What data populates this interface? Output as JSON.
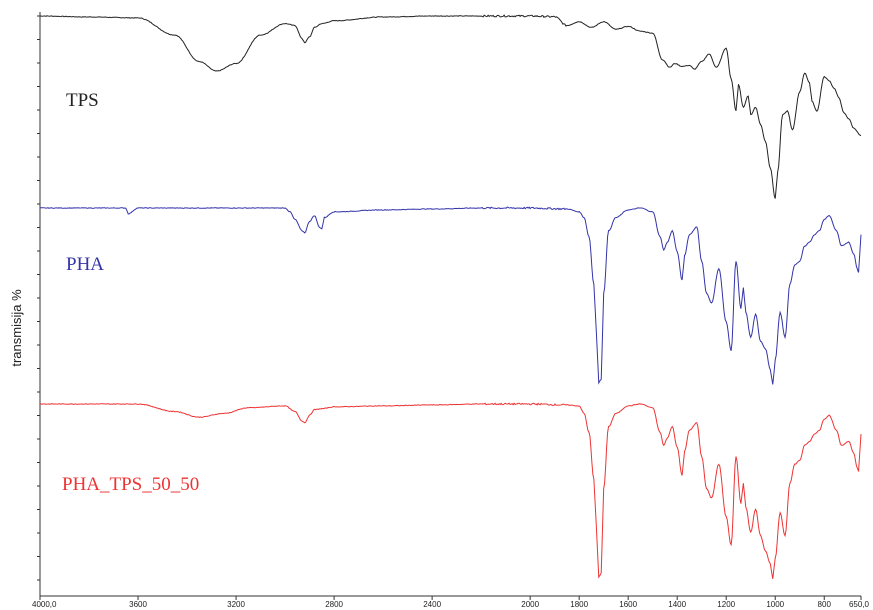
{
  "chart_data": {
    "type": "line",
    "ylabel": "transmisija %",
    "xlabel": "",
    "xlim": [
      4000,
      650
    ],
    "x_reversed": true,
    "x_ticks": [
      "4000,0",
      "3600",
      "3200",
      "2800",
      "2400",
      "2000",
      "1800",
      "1600",
      "1400",
      "1200",
      "1000",
      "800",
      "650,0"
    ],
    "x_tick_values": [
      4000,
      3600,
      3200,
      2800,
      2400,
      2000,
      1800,
      1600,
      1400,
      1200,
      1000,
      800,
      650
    ],
    "grid": false,
    "series": [
      {
        "name": "TPS",
        "color": "#222222",
        "x": [
          4000,
          3800,
          3600,
          3450,
          3350,
          3280,
          3200,
          3100,
          3000,
          2960,
          2930,
          2920,
          2900,
          2880,
          2850,
          2800,
          2600,
          2400,
          2200,
          2000,
          1900,
          1850,
          1800,
          1750,
          1700,
          1650,
          1600,
          1550,
          1500,
          1460,
          1430,
          1410,
          1380,
          1350,
          1330,
          1300,
          1270,
          1240,
          1200,
          1180,
          1160,
          1150,
          1130,
          1110,
          1100,
          1080,
          1060,
          1040,
          1020,
          1000,
          990,
          970,
          950,
          930,
          900,
          880,
          860,
          850,
          830,
          800,
          780,
          760,
          740,
          720,
          700,
          680,
          650
        ],
        "y": [
          100,
          99.5,
          99,
          90,
          76,
          71,
          75,
          90,
          96,
          95,
          88,
          86,
          89,
          94,
          96,
          97.5,
          99.5,
          100,
          100,
          100,
          99.6,
          95,
          97,
          94,
          97,
          93,
          94.5,
          92,
          91,
          77,
          73,
          75,
          73.5,
          74,
          72,
          76,
          80,
          73,
          83,
          67,
          50,
          64,
          52,
          58,
          48,
          52,
          43,
          34,
          20,
          4,
          18,
          48,
          50,
          40,
          60,
          70,
          65,
          55,
          50,
          68,
          66,
          62,
          57,
          49,
          46,
          41,
          37
        ]
      },
      {
        "name": "PHA",
        "color": "#3333aa",
        "x": [
          4000,
          3800,
          3650,
          3640,
          3600,
          3400,
          3000,
          2980,
          2960,
          2930,
          2920,
          2900,
          2880,
          2860,
          2850,
          2840,
          2800,
          2600,
          2400,
          2200,
          2000,
          1850,
          1800,
          1780,
          1760,
          1740,
          1730,
          1720,
          1710,
          1700,
          1680,
          1650,
          1600,
          1550,
          1500,
          1470,
          1455,
          1440,
          1420,
          1400,
          1380,
          1370,
          1350,
          1320,
          1300,
          1280,
          1260,
          1230,
          1200,
          1180,
          1160,
          1140,
          1130,
          1120,
          1100,
          1080,
          1060,
          1040,
          1020,
          1010,
          1000,
          980,
          960,
          940,
          920,
          900,
          880,
          860,
          840,
          820,
          800,
          780,
          750,
          730,
          700,
          680,
          665,
          660,
          650
        ],
        "y": [
          100,
          100,
          100,
          97,
          100,
          100,
          100,
          98,
          94,
          88,
          87,
          93,
          96,
          90,
          89,
          95,
          98,
          99,
          99.5,
          100,
          100,
          99.5,
          98,
          95,
          85,
          60,
          35,
          8,
          10,
          55,
          88,
          95,
          99,
          100,
          98,
          85,
          78,
          82,
          88,
          77,
          62,
          75,
          86,
          90,
          72,
          55,
          50,
          68,
          40,
          25,
          72,
          47,
          58,
          45,
          32,
          44,
          30,
          26,
          15,
          7,
          20,
          45,
          32,
          60,
          70,
          72,
          80,
          82,
          86,
          88,
          94,
          96,
          88,
          80,
          82,
          76,
          68,
          66,
          86
        ]
      },
      {
        "name": "PHA_TPS_50_50",
        "color": "#ee3333",
        "x": [
          4000,
          3800,
          3600,
          3450,
          3350,
          3250,
          3150,
          3000,
          2960,
          2930,
          2920,
          2900,
          2880,
          2850,
          2800,
          2600,
          2400,
          2200,
          2000,
          1850,
          1800,
          1780,
          1760,
          1740,
          1730,
          1720,
          1710,
          1700,
          1680,
          1650,
          1600,
          1550,
          1500,
          1470,
          1455,
          1440,
          1420,
          1400,
          1380,
          1370,
          1350,
          1320,
          1300,
          1280,
          1260,
          1230,
          1200,
          1180,
          1160,
          1140,
          1130,
          1120,
          1100,
          1080,
          1060,
          1040,
          1020,
          1010,
          1000,
          980,
          960,
          940,
          920,
          900,
          880,
          860,
          840,
          820,
          800,
          780,
          750,
          730,
          700,
          680,
          665,
          660,
          650
        ],
        "y": [
          100,
          100,
          100,
          96,
          93,
          95,
          98,
          99,
          96,
          91,
          90,
          94,
          97,
          97.5,
          98.5,
          99,
          99.5,
          100,
          100,
          99.5,
          99,
          95,
          85,
          60,
          35,
          8,
          10,
          55,
          88,
          95,
          99,
          100,
          98,
          85,
          78,
          82,
          88,
          77,
          62,
          75,
          86,
          90,
          72,
          55,
          50,
          68,
          40,
          25,
          72,
          47,
          58,
          45,
          32,
          44,
          30,
          22,
          15,
          7,
          18,
          42,
          30,
          58,
          68,
          70,
          78,
          80,
          84,
          86,
          92,
          94,
          86,
          78,
          80,
          74,
          66,
          64,
          84
        ]
      }
    ]
  }
}
